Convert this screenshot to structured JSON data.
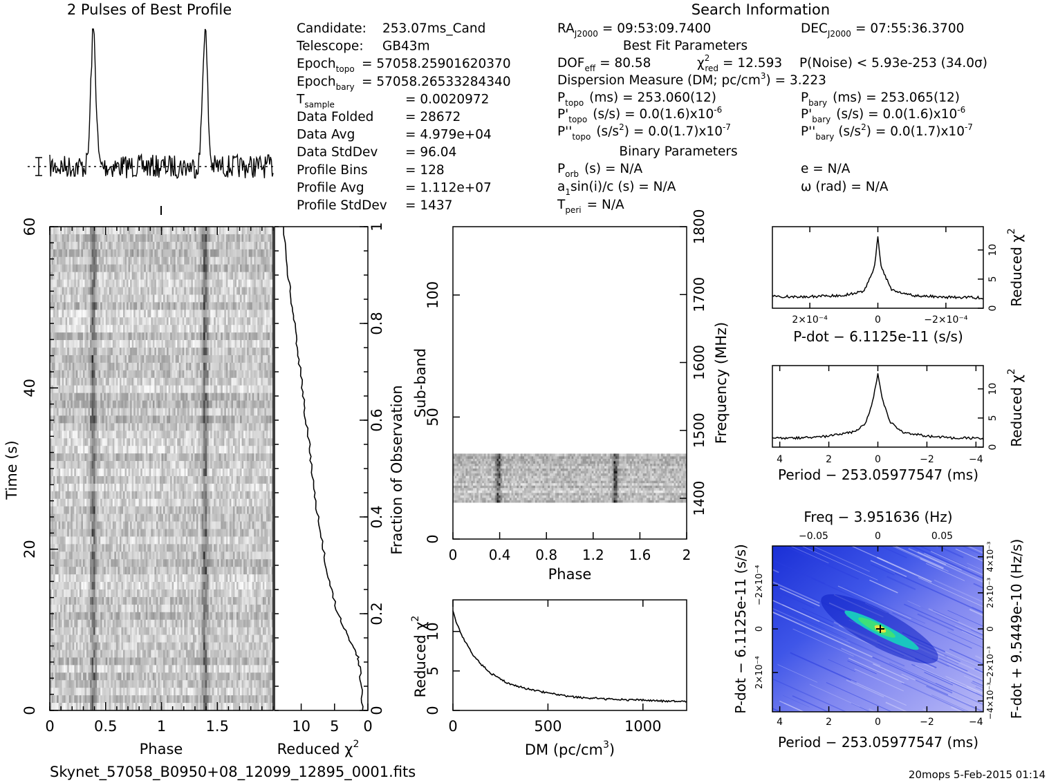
{
  "profile_panel": {
    "title": "2 Pulses of Best Profile"
  },
  "search_info": {
    "heading": "Search Information",
    "col1": [
      {
        "label": "Candidate:",
        "value": "253.07ms_Cand"
      },
      {
        "label": "Telescope:",
        "value": "GB43m"
      },
      {
        "label": "Epoch",
        "sub": "topo",
        "value": "= 57058.25901620370"
      },
      {
        "label": "Epoch",
        "sub": "bary",
        "value": "= 57058.26533284340"
      },
      {
        "label": "T",
        "sub": "sample",
        "value": "=   0.0020972"
      },
      {
        "label": "Data Folded",
        "value": "=   28672"
      },
      {
        "label": "Data Avg",
        "value": "=   4.979e+04"
      },
      {
        "label": "Data StdDev",
        "value": "=   96.04"
      },
      {
        "label": "Profile Bins",
        "value": "=   128"
      },
      {
        "label": "Profile Avg",
        "value": "=   1.112e+07"
      },
      {
        "label": "Profile StdDev",
        "value": "=   1437"
      }
    ],
    "ra": "RA",
    "ra_sub": "J2000",
    "ra_value": "= 09:53:09.7400",
    "dec": "DEC",
    "dec_sub": "J2000",
    "dec_value": "= 07:55:36.3700",
    "best_fit_heading": "Best Fit Parameters",
    "dof": "DOF",
    "dof_sub": "eff",
    "dof_value": "= 80.58",
    "chi": "χ",
    "chi_sup": "2",
    "chi_sub": "red",
    "chi_value": "= 12.593",
    "pnoise": "P(Noise) < 5.93e-253   (34.0σ)",
    "dm_text": "Dispersion Measure (DM; pc/cm",
    "dm_sup": "3",
    "dm_value": ") = 3.223",
    "ptopo": "P",
    "ptopo_sub": "topo",
    "ptopo_value": "(ms)  =   253.060(12)",
    "pbary": "P",
    "pbary_sub": "bary",
    "pbary_value": "(ms)  =   253.065(12)",
    "pdtopo_label": "P'",
    "pdtopo_sub": "topo",
    "pdtopo_value": "(s/s) = 0.0(1.6)x10",
    "pdtopo_exp": "-6",
    "pdbary_label": "P'",
    "pdbary_sub": "bary",
    "pdbary_value": "(s/s) = 0.0(1.6)x10",
    "pdbary_exp": "-6",
    "pddtopo_label": "P''",
    "pddtopo_sub": "topo",
    "pddtopo_value": "(s/s",
    "pddtopo_sup": "2",
    "pddtopo_value2": ") = 0.0(1.7)x10",
    "pddtopo_exp": "-7",
    "pddbary_label": "P''",
    "pddbary_sub": "bary",
    "pddbary_value": "(s/s",
    "pddbary_sup": "2",
    "pddbary_value2": ") = 0.0(1.7)x10",
    "pddbary_exp": "-7",
    "binary_heading": "Binary Parameters",
    "porb": "P",
    "porb_sub": "orb",
    "porb_value": "(s) = N/A",
    "a1": "a",
    "a1_sub": "1",
    "a1_value": "sin(i)/c (s) = N/A",
    "tperi": "T",
    "tperi_sub": "peri",
    "tperi_value": "= N/A",
    "e_value": "e = N/A",
    "omega_value": "ω (rad) = N/A"
  },
  "labels": {
    "time_axis": "Time (s)",
    "phase_axis": "Phase",
    "reduced_chi": "Reduced χ",
    "chi_sup": "2",
    "fraction_obs": "Fraction of Observation",
    "subband": "Sub-band",
    "frequency": "Frequency (MHz)",
    "dm_axis": "DM (pc/cm",
    "dm_axis_sup": "3",
    "dm_axis_end": ")",
    "pdot_axis": "P-dot − 6.1125e-11 (s/s)",
    "period_axis": "Period − 253.05977547 (ms)",
    "freq_axis": "Freq − 3.951636 (Hz)",
    "fdot_axis": "F-dot + 9.5449e-10 (Hz/s)"
  },
  "footer": {
    "filename": "Skynet_57058_B0950+08_12099_12895_0001.fits",
    "stamp": "20mops   5-Feb-2015 01:14"
  },
  "chart_data": [
    {
      "id": "profile",
      "type": "line",
      "title": "2 Pulses of Best Profile",
      "xlim": [
        0,
        2
      ],
      "peaks_at_phase": [
        0.39,
        1.39
      ]
    },
    {
      "id": "time_phase",
      "type": "heatmap",
      "xlabel": "Phase",
      "ylabel": "Time (s)",
      "xlim": [
        0,
        2
      ],
      "ylim": [
        0,
        60
      ],
      "xticks": [
        "0",
        "0.5",
        "1",
        "1.5"
      ],
      "yticks": [
        "0",
        "20",
        "40",
        "60"
      ]
    },
    {
      "id": "chi_vs_time",
      "type": "line",
      "xlabel": "Reduced χ2",
      "ylabel": "Fraction of Observation",
      "xlim": [
        14,
        0
      ],
      "ylim": [
        0,
        1
      ],
      "xticks": [
        "10",
        "5",
        "0"
      ],
      "yticks": [
        "0",
        "0.2",
        "0.4",
        "0.6",
        "0.8",
        "1"
      ],
      "x": [
        0.8,
        1.0,
        1.2,
        1.5,
        2.5,
        3.5,
        4.5,
        5.5,
        6.3,
        6.9,
        7.5,
        8.0,
        8.4,
        8.8,
        9.3,
        9.7,
        10.1,
        10.6,
        11.0,
        11.5,
        12.0,
        12.6
      ],
      "y": [
        0.0,
        0.05,
        0.09,
        0.11,
        0.14,
        0.17,
        0.2,
        0.25,
        0.3,
        0.35,
        0.4,
        0.45,
        0.5,
        0.55,
        0.6,
        0.65,
        0.7,
        0.75,
        0.8,
        0.85,
        0.9,
        1.0
      ]
    },
    {
      "id": "subband_phase",
      "type": "heatmap",
      "xlabel": "Phase",
      "ylabel": "Sub-band",
      "y2label": "Frequency (MHz)",
      "xlim": [
        0,
        2
      ],
      "ylim": [
        0,
        128
      ],
      "xticks": [
        "0",
        "0.4",
        "0.8",
        "1.2",
        "1.6",
        "2"
      ],
      "yticks": [
        "0",
        "50",
        "100"
      ],
      "y2ticks": [
        "1400",
        "1500",
        "1600",
        "1700",
        "1800"
      ],
      "signal_subbands": [
        15,
        35
      ]
    },
    {
      "id": "dm_curve",
      "type": "line",
      "xlabel": "DM (pc/cm3)",
      "ylabel": "Reduced χ2",
      "xlim": [
        0,
        1230
      ],
      "ylim": [
        0,
        14
      ],
      "xticks": [
        "0",
        "500",
        "1000"
      ],
      "yticks": [
        "0",
        "5",
        "10"
      ],
      "x": [
        0,
        20,
        50,
        100,
        150,
        200,
        250,
        300,
        400,
        500,
        600,
        700,
        800,
        900,
        1000,
        1100,
        1230
      ],
      "y": [
        12.6,
        11.0,
        9.3,
        7.2,
        5.8,
        4.7,
        4.0,
        3.3,
        2.7,
        2.2,
        1.8,
        1.6,
        1.45,
        1.35,
        1.3,
        1.2,
        1.15
      ]
    },
    {
      "id": "pdot_curve",
      "type": "line",
      "xlabel": "P-dot − 6.1125e-11 (s/s)",
      "ylabel": "Reduced χ2",
      "xlim": [
        0.00031,
        -0.00031
      ],
      "ylim": [
        0,
        14
      ],
      "xticks": [
        "2×10⁻⁴",
        "0",
        "−2×10⁻⁴"
      ],
      "yticks": [
        "0",
        "5",
        "10"
      ],
      "x": [
        0.00031,
        0.0002,
        0.0001,
        4e-05,
        1e-05,
        0,
        -1e-05,
        -4e-05,
        -0.0001,
        -0.0002,
        -0.00031
      ],
      "y": [
        2.0,
        2.0,
        2.2,
        3.0,
        7.0,
        12.5,
        7.0,
        3.2,
        2.2,
        1.9,
        1.8
      ]
    },
    {
      "id": "period_curve",
      "type": "line",
      "xlabel": "Period − 253.05977547 (ms)",
      "ylabel": "Reduced χ2",
      "xlim": [
        4.3,
        -4.3
      ],
      "ylim": [
        0,
        14
      ],
      "xticks": [
        "4",
        "2",
        "0",
        "−2",
        "−4"
      ],
      "yticks": [
        "0",
        "5",
        "10"
      ],
      "x": [
        4.3,
        3.0,
        2.0,
        1.0,
        0.5,
        0.2,
        0,
        -0.2,
        -0.5,
        -1.0,
        -2.0,
        -3.0,
        -4.3
      ],
      "y": [
        1.5,
        1.6,
        1.9,
        2.6,
        4.0,
        8.0,
        12.5,
        8.0,
        4.3,
        2.6,
        1.9,
        1.6,
        1.5
      ]
    },
    {
      "id": "p_pdot",
      "type": "heatmap",
      "xlabel": "Period − 253.05977547 (ms)",
      "ylabel": "P-dot − 6.1125e-11 (s/s)",
      "x2label": "Freq − 3.951636 (Hz)",
      "y2label": "F-dot + 9.5449e-10 (Hz/s)",
      "xticks": [
        "4",
        "2",
        "0",
        "−2",
        "−4"
      ],
      "x2ticks": [
        "−0.05",
        "0",
        "0.05"
      ],
      "yticks": [
        "−2×10⁻⁴",
        "0",
        "2×10⁻⁴"
      ],
      "y2ticks": [
        "4×10⁻³",
        "2×10⁻³",
        "0",
        "−2×10⁻³",
        "−4×10⁻³"
      ]
    }
  ]
}
